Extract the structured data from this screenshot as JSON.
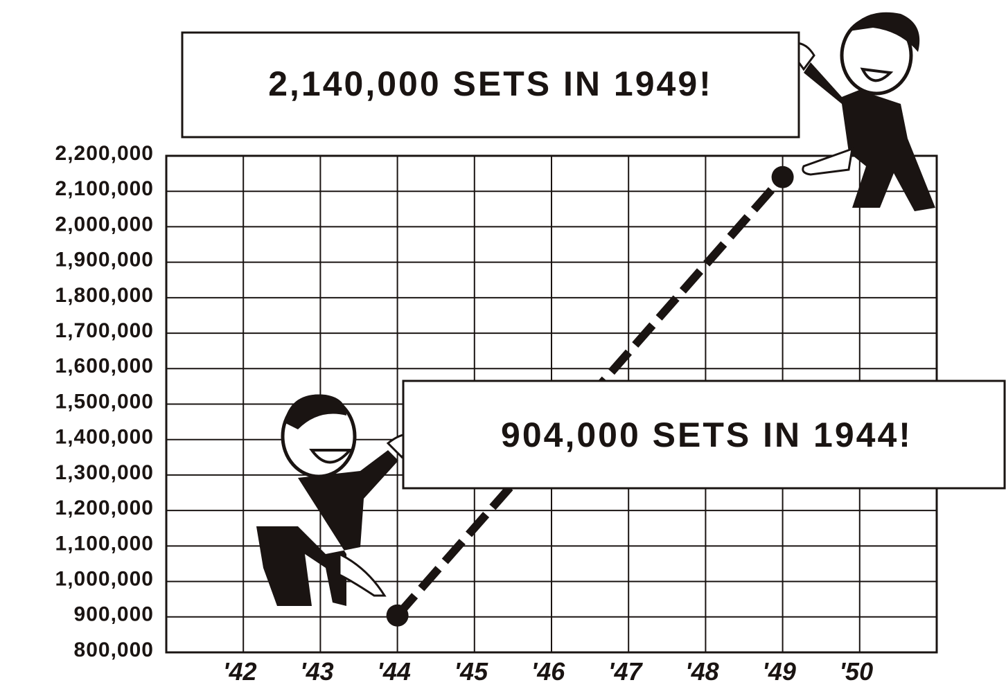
{
  "chart_data": {
    "type": "line",
    "annotations": [
      {
        "text": "2,140,000 SETS IN 1949!"
      },
      {
        "text": "904,000 SETS IN 1944!"
      }
    ],
    "xlim": [
      1941,
      1951
    ],
    "xticks": [
      {
        "value": 1942,
        "label": "'42"
      },
      {
        "value": 1943,
        "label": "'43"
      },
      {
        "value": 1944,
        "label": "'44"
      },
      {
        "value": 1945,
        "label": "'45"
      },
      {
        "value": 1946,
        "label": "'46"
      },
      {
        "value": 1947,
        "label": "'47"
      },
      {
        "value": 1948,
        "label": "'48"
      },
      {
        "value": 1949,
        "label": "'49"
      },
      {
        "value": 1950,
        "label": "'50"
      }
    ],
    "ylim": [
      800000,
      2200000
    ],
    "yticks": [
      {
        "value": 800000,
        "label": "800,000"
      },
      {
        "value": 900000,
        "label": "900,000"
      },
      {
        "value": 1000000,
        "label": "1,000,000"
      },
      {
        "value": 1100000,
        "label": "1,100,000"
      },
      {
        "value": 1200000,
        "label": "1,200,000"
      },
      {
        "value": 1300000,
        "label": "1,300,000"
      },
      {
        "value": 1400000,
        "label": "1,400,000"
      },
      {
        "value": 1500000,
        "label": "1,500,000"
      },
      {
        "value": 1600000,
        "label": "1,600,000"
      },
      {
        "value": 1700000,
        "label": "1,700,000"
      },
      {
        "value": 1800000,
        "label": "1,800,000"
      },
      {
        "value": 1900000,
        "label": "1,900,000"
      },
      {
        "value": 2000000,
        "label": "2,000,000"
      },
      {
        "value": 2100000,
        "label": "2,100,000"
      },
      {
        "value": 2200000,
        "label": "2,200,000"
      }
    ],
    "grid": true,
    "series": [
      {
        "color": "#1a1412",
        "x": [
          1944,
          1949
        ],
        "values": [
          904000,
          2140000
        ]
      }
    ]
  }
}
